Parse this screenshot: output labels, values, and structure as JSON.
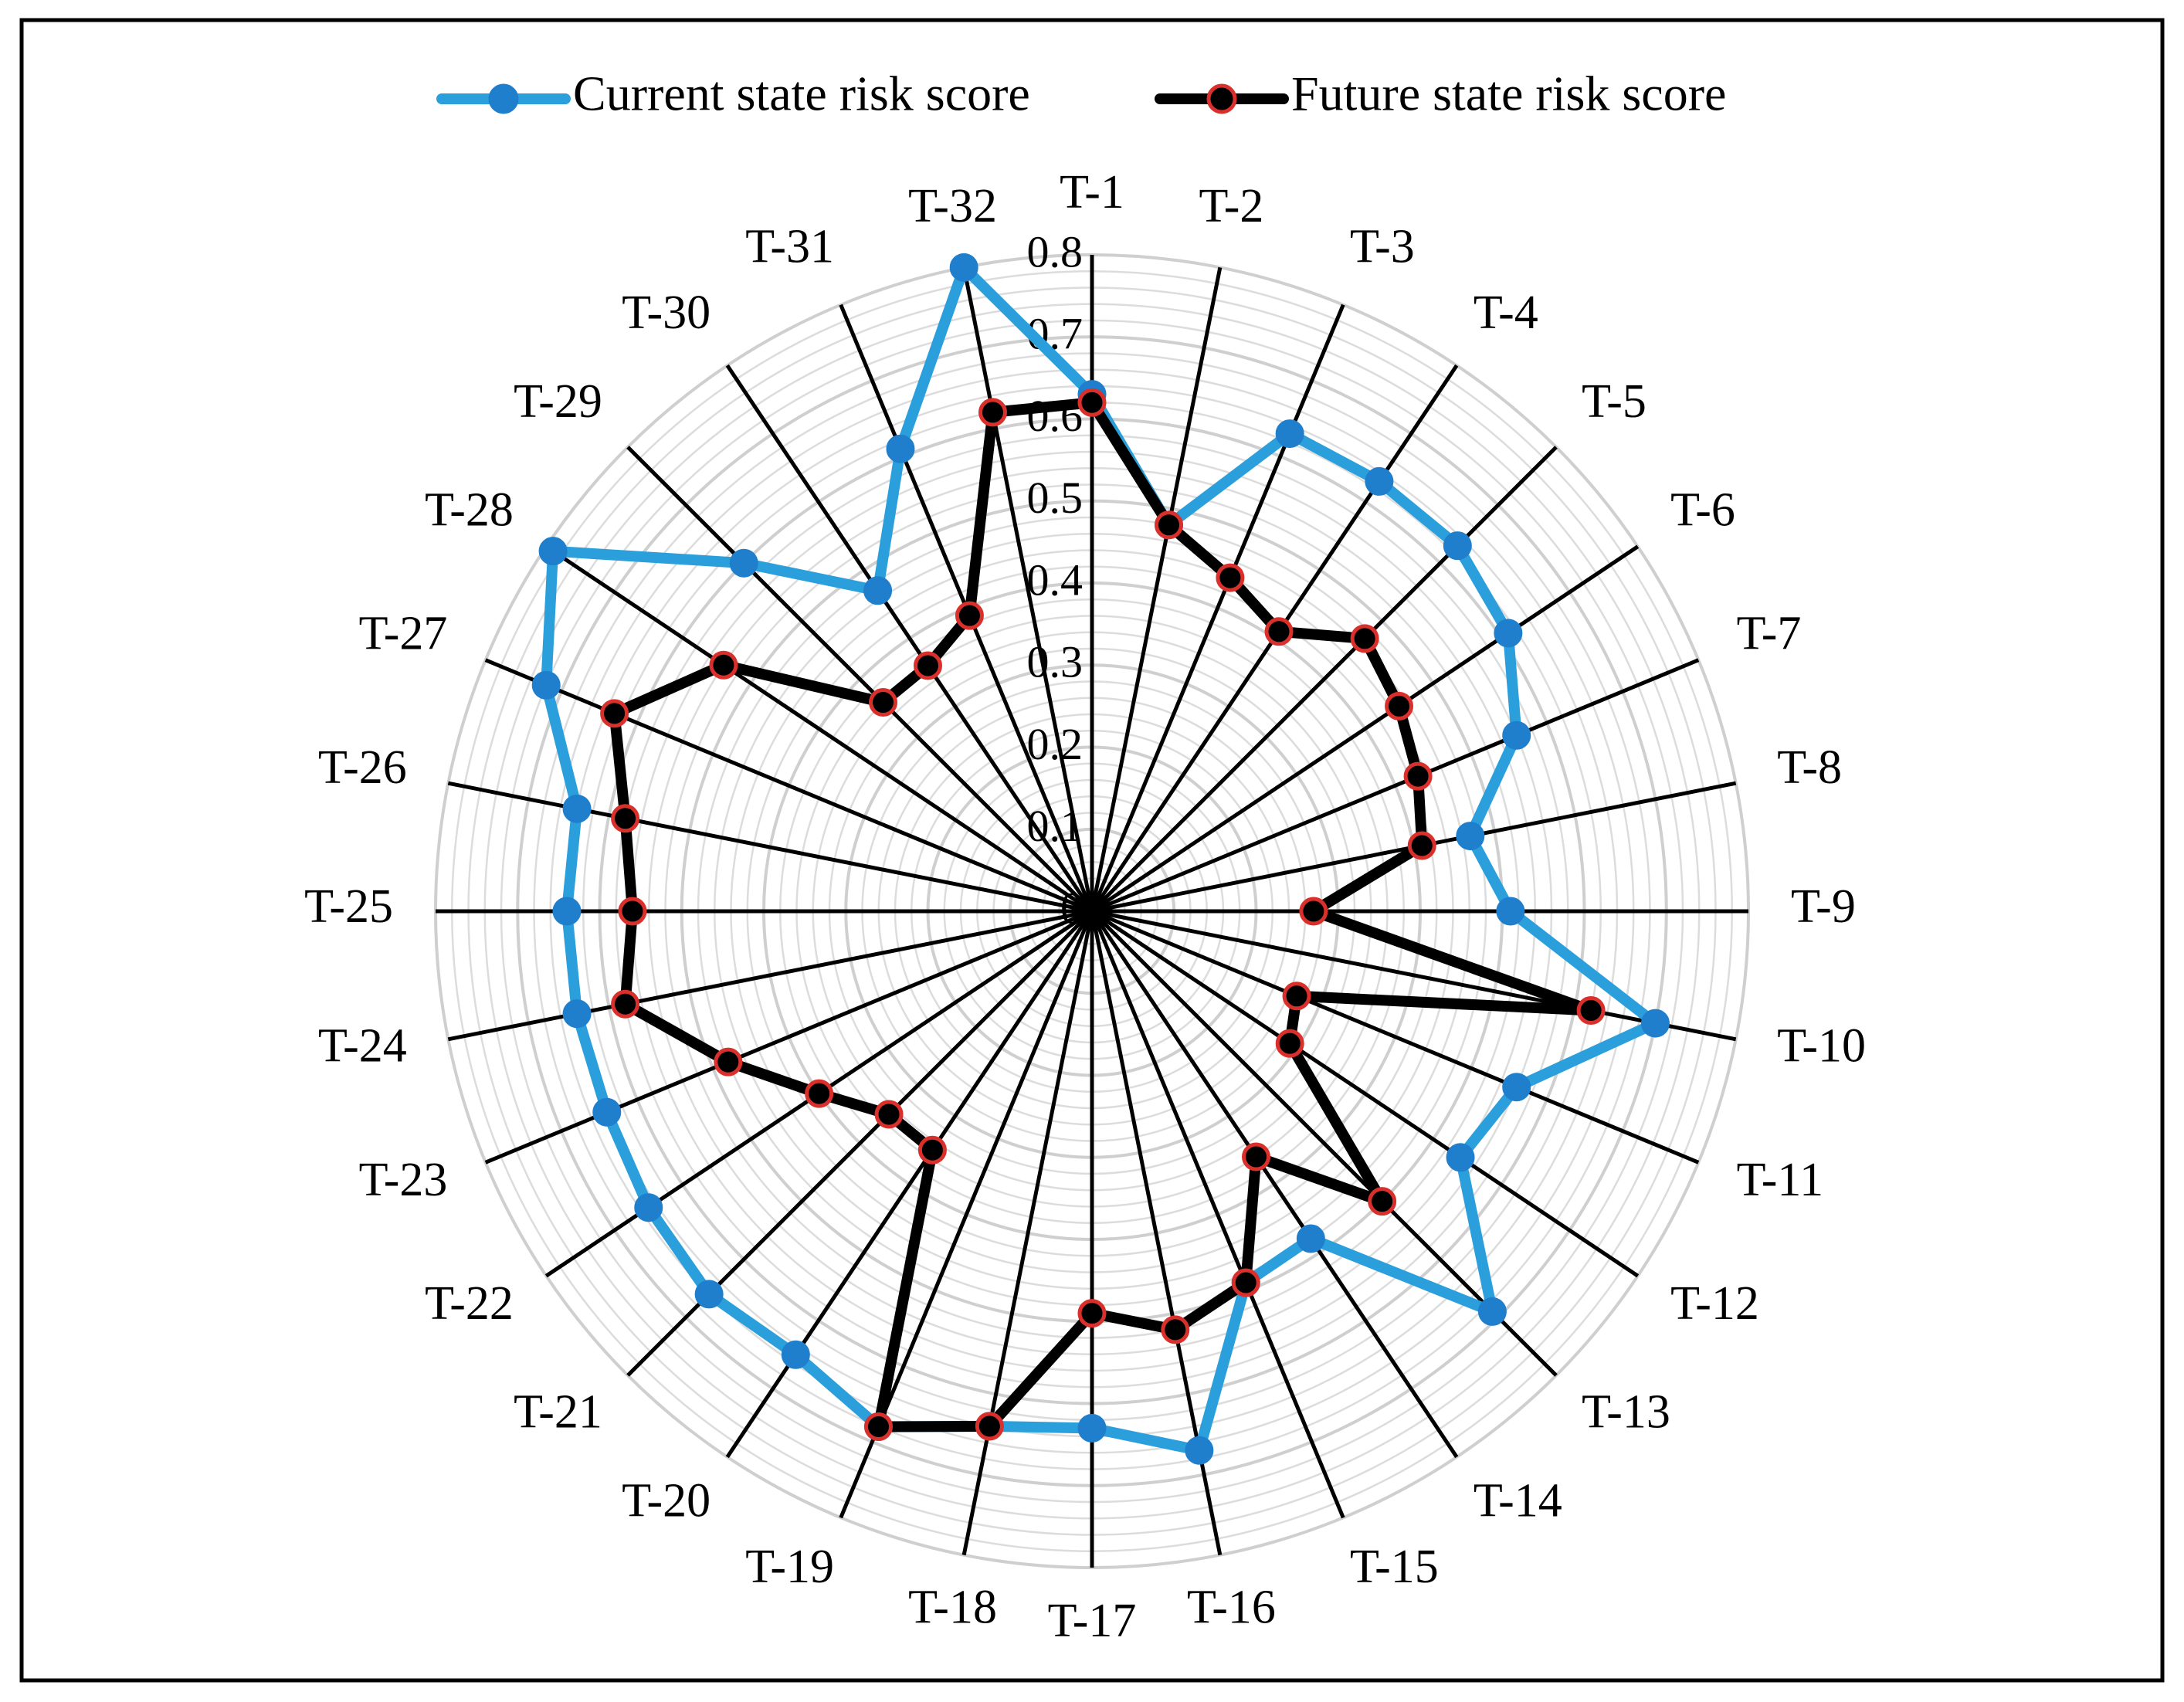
{
  "chart_data": {
    "type": "radar",
    "title": "",
    "categories": [
      "T-1",
      "T-2",
      "T-3",
      "T-4",
      "T-5",
      "T-6",
      "T-7",
      "T-8",
      "T-9",
      "T-10",
      "T-11",
      "T-12",
      "T-13",
      "T-14",
      "T-15",
      "T-16",
      "T-17",
      "T-18",
      "T-19",
      "T-20",
      "T-21",
      "T-22",
      "T-23",
      "T-24",
      "T-25",
      "T-26",
      "T-27",
      "T-28",
      "T-29",
      "T-30",
      "T-31",
      "T-32"
    ],
    "radial_ticks": [
      "0",
      "0.1",
      "0.2",
      "0.3",
      "0.4",
      "0.5",
      "0.6",
      "0.7",
      "0.8"
    ],
    "rmax": 0.8,
    "grid": true,
    "legend_position": "top",
    "series": [
      {
        "name": "Current state risk score",
        "color": "#2b9fdb",
        "marker_color": "#1f7fcc",
        "values": [
          0.63,
          0.48,
          0.63,
          0.63,
          0.63,
          0.61,
          0.56,
          0.47,
          0.51,
          0.7,
          0.56,
          0.54,
          0.69,
          0.48,
          0.49,
          0.67,
          0.63,
          0.64,
          0.68,
          0.65,
          0.66,
          0.65,
          0.64,
          0.64,
          0.64,
          0.64,
          0.72,
          0.79,
          0.6,
          0.47,
          0.61,
          0.8
        ]
      },
      {
        "name": "Future state risk score",
        "color": "#000000",
        "marker_color": "#d9302c",
        "values": [
          0.62,
          0.48,
          0.44,
          0.41,
          0.47,
          0.45,
          0.43,
          0.41,
          0.27,
          0.62,
          0.27,
          0.29,
          0.5,
          0.36,
          0.49,
          0.52,
          0.49,
          0.64,
          0.68,
          0.35,
          0.35,
          0.4,
          0.48,
          0.58,
          0.56,
          0.58,
          0.63,
          0.54,
          0.36,
          0.36,
          0.39,
          0.62
        ]
      }
    ]
  }
}
